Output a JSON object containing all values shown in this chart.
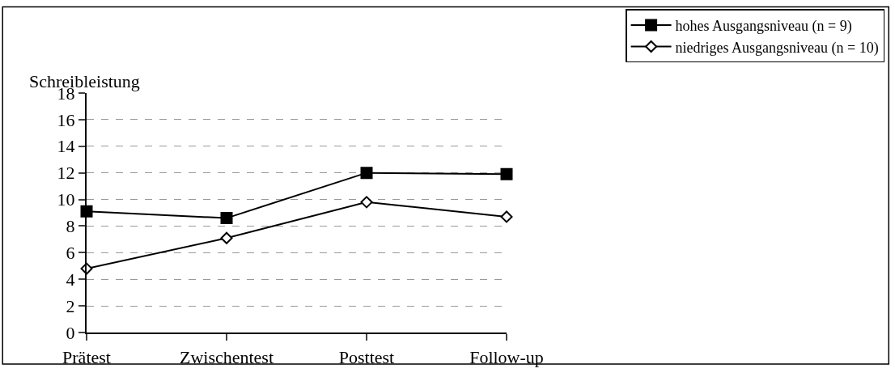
{
  "chart_data": {
    "type": "line",
    "ylabel": "Schreibleistung",
    "categories": [
      "Prätest",
      "Zwischentest",
      "Posttest",
      "Follow-up"
    ],
    "series": [
      {
        "name": "hohes Ausgangsniveau (n = 9)",
        "color": "#000000",
        "marker": "square",
        "values": [
          9.1,
          8.6,
          12.0,
          11.9
        ]
      },
      {
        "name": "niedriges Ausgangsniveau (n = 10)",
        "color": "#000000",
        "marker": "diamond",
        "values": [
          4.8,
          7.1,
          9.8,
          8.7
        ]
      }
    ],
    "ylim": [
      0,
      18
    ],
    "yticks": [
      0,
      2,
      4,
      6,
      8,
      10,
      12,
      14,
      16,
      18
    ],
    "grid": "y",
    "legend": "top right",
    "line_style": "solid"
  }
}
